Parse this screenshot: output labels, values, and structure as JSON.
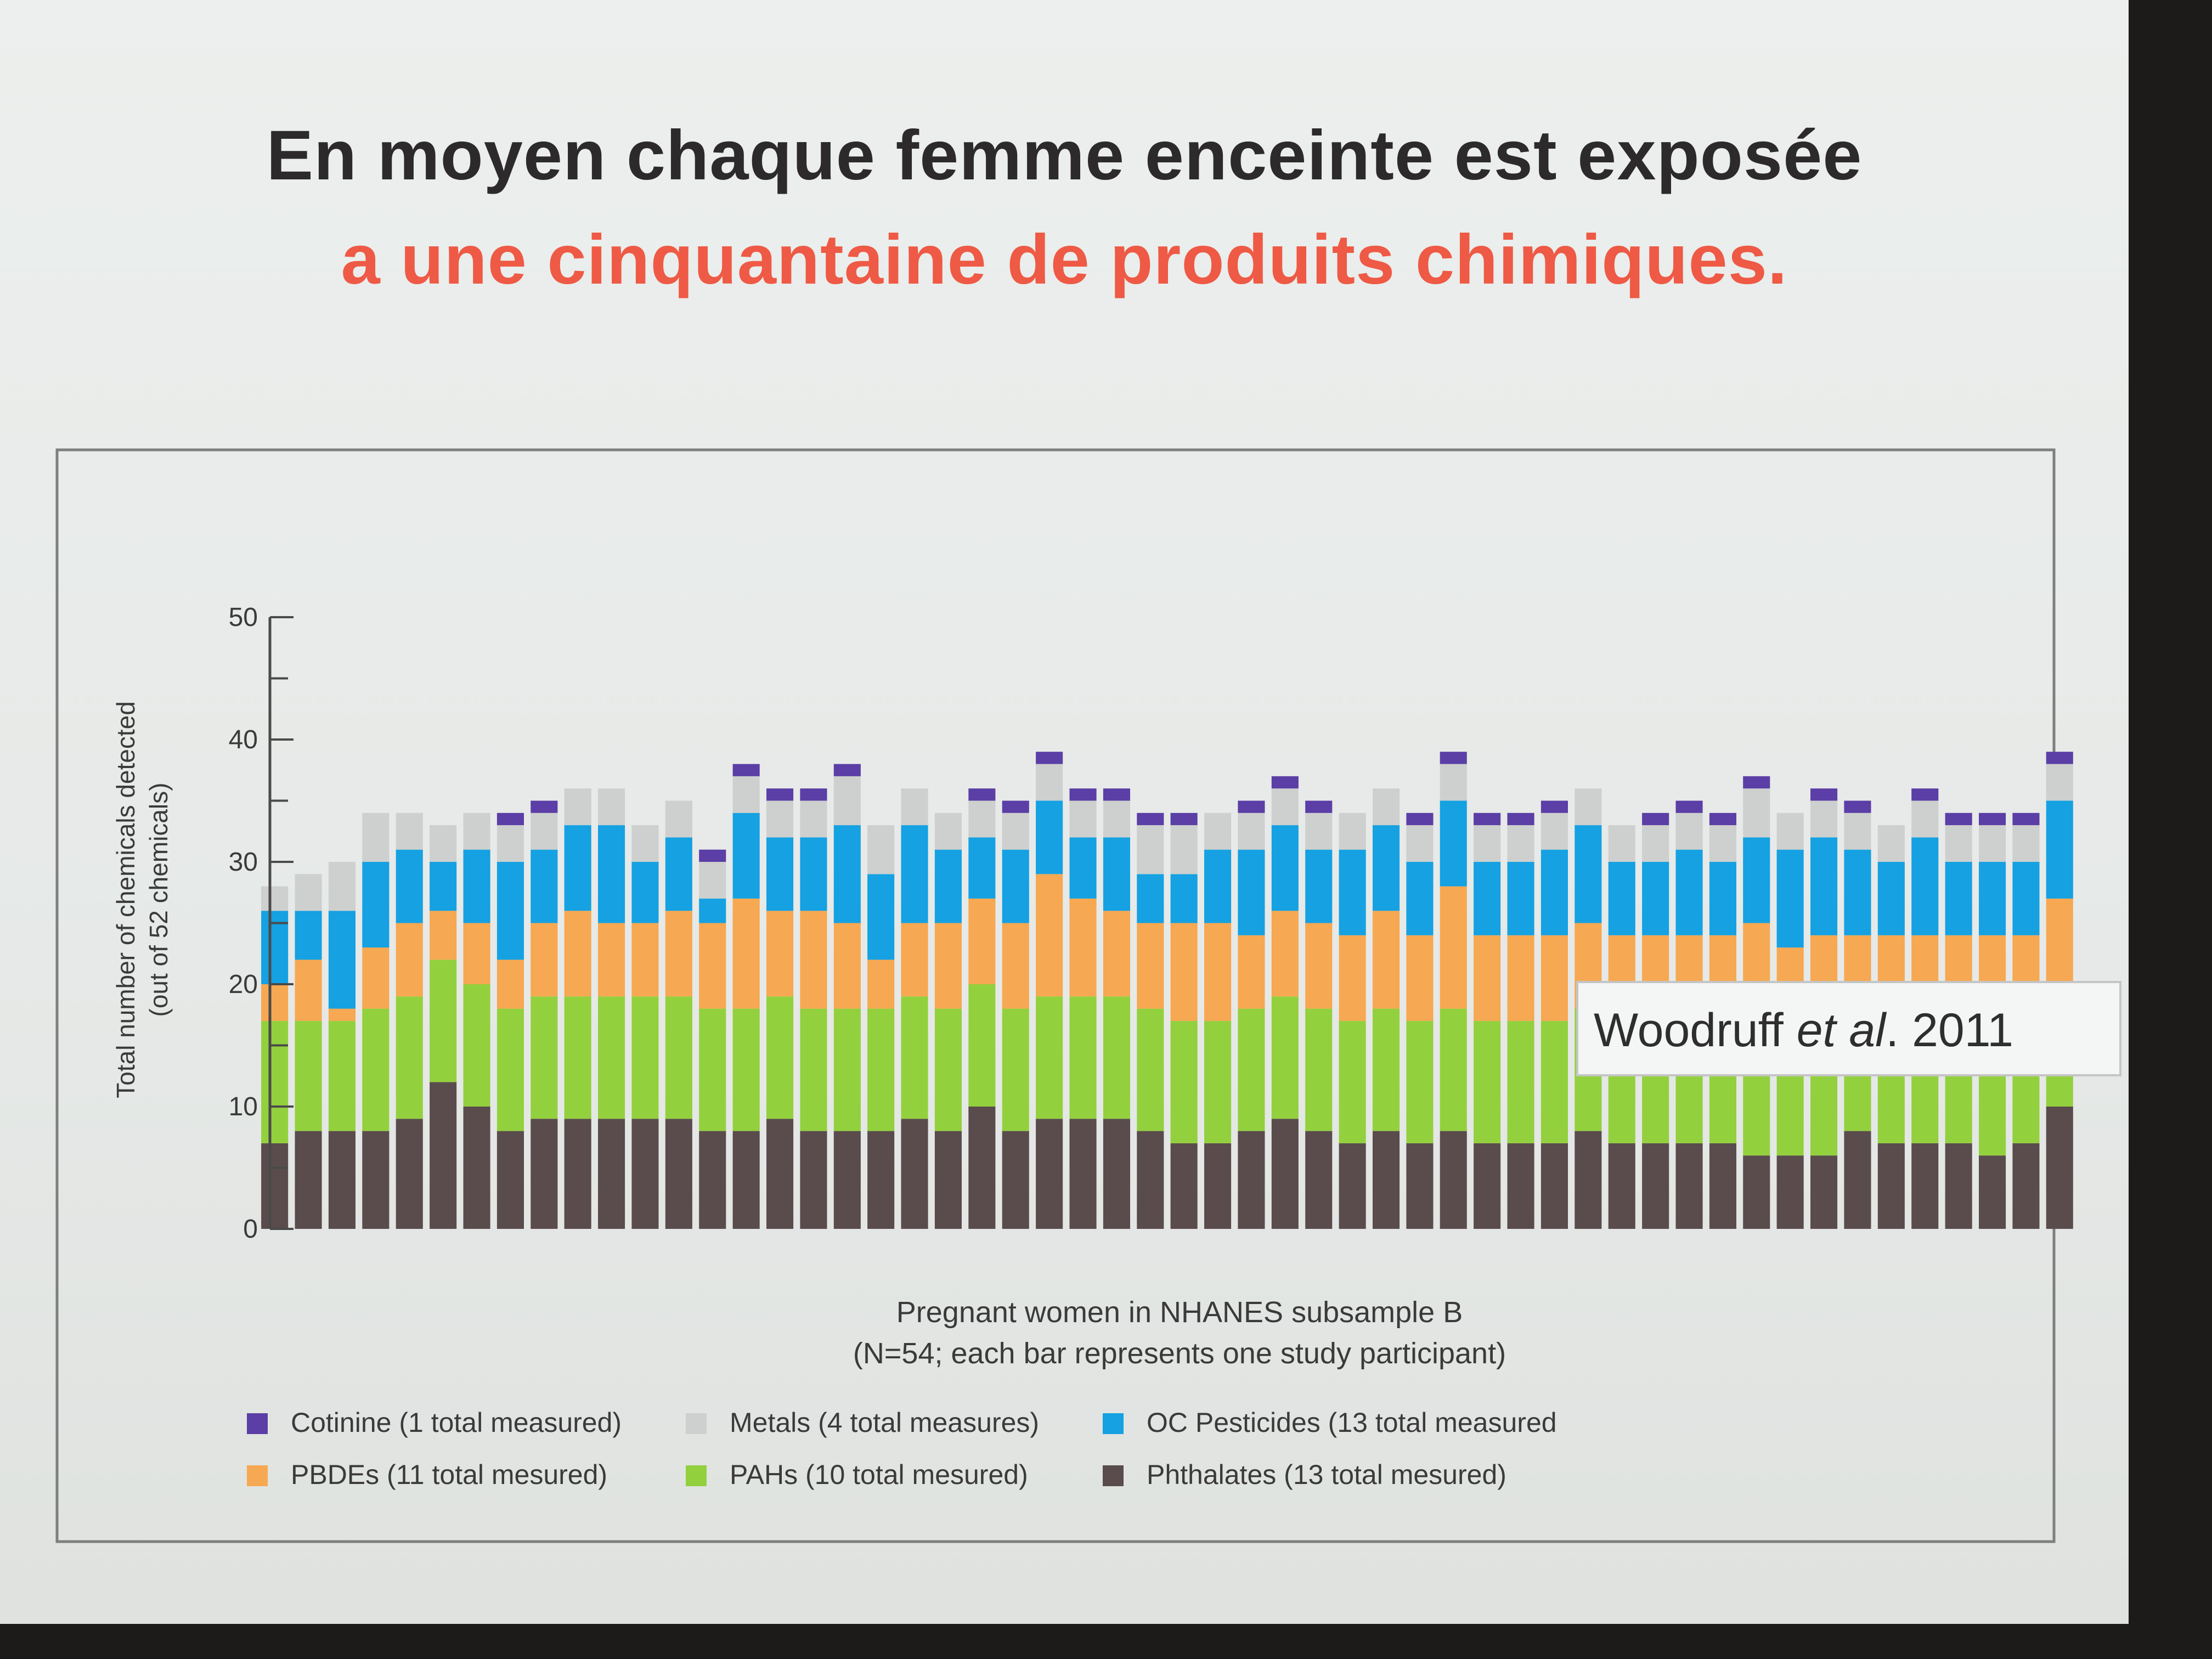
{
  "slide": {
    "title_line1": "En moyen chaque femme enceinte est exposée",
    "title_line2": "a une cinquantaine de produits chimiques."
  },
  "citation": {
    "author": "Woodruff",
    "etal": "et al",
    "rest": ". 2011"
  },
  "colors": {
    "Cotinine": "#5b3ea6",
    "Metals": "#cdd0ce",
    "OC Pesticides": "#15a1e2",
    "PBDEs": "#f6a852",
    "PAHs": "#93d03e",
    "Phthalates": "#5a4c4c",
    "title_accent": "#ee5a45"
  },
  "chart_data": {
    "type": "bar",
    "stacked": true,
    "ylabel": "Total number of chemicals detected",
    "ylabel2": "(out of 52 chemicals)",
    "xlabel": "Pregnant women in NHANES subsample B",
    "xlabel2": "(N=54; each bar represents one study participant)",
    "ylim": [
      0,
      50
    ],
    "yticks": [
      0,
      10,
      20,
      30,
      40,
      50
    ],
    "legend_position": "bottom",
    "series": [
      {
        "name": "Phthalates",
        "legend": "Phthalates (13 total mesured)",
        "values": [
          7,
          8,
          8,
          8,
          9,
          12,
          10,
          8,
          9,
          9,
          9,
          9,
          9,
          8,
          8,
          9,
          8,
          8,
          8,
          9,
          8,
          10,
          8,
          9,
          9,
          9,
          8,
          7,
          7,
          8,
          9,
          8,
          7,
          8,
          7,
          8,
          7,
          7,
          7,
          8,
          7,
          7,
          7,
          7,
          6,
          6,
          6,
          8,
          7,
          7,
          7,
          6,
          7,
          10
        ]
      },
      {
        "name": "PAHs",
        "legend": "PAHs (10 total mesured)",
        "values": [
          10,
          9,
          9,
          10,
          10,
          10,
          10,
          10,
          10,
          10,
          10,
          10,
          10,
          10,
          10,
          10,
          10,
          10,
          10,
          10,
          10,
          10,
          10,
          10,
          10,
          10,
          10,
          10,
          10,
          10,
          10,
          10,
          10,
          10,
          10,
          10,
          10,
          10,
          10,
          10,
          10,
          10,
          10,
          10,
          10,
          10,
          10,
          9,
          10,
          10,
          10,
          10,
          10,
          10
        ]
      },
      {
        "name": "PBDEs",
        "legend": "PBDEs (11 total mesured)",
        "values": [
          3,
          5,
          1,
          5,
          6,
          4,
          5,
          4,
          6,
          7,
          6,
          6,
          7,
          7,
          9,
          7,
          8,
          7,
          4,
          6,
          7,
          7,
          7,
          10,
          8,
          7,
          7,
          8,
          8,
          6,
          7,
          7,
          7,
          8,
          7,
          10,
          7,
          7,
          7,
          7,
          7,
          7,
          7,
          7,
          9,
          7,
          8,
          7,
          7,
          7,
          7,
          8,
          7,
          7
        ]
      },
      {
        "name": "OC Pesticides",
        "legend": "OC Pesticides (13 total measured",
        "values": [
          6,
          4,
          8,
          7,
          6,
          4,
          6,
          8,
          6,
          7,
          8,
          5,
          6,
          2,
          7,
          6,
          6,
          8,
          7,
          8,
          6,
          5,
          6,
          6,
          5,
          6,
          4,
          4,
          6,
          7,
          7,
          6,
          7,
          7,
          6,
          7,
          6,
          6,
          7,
          8,
          6,
          6,
          7,
          6,
          7,
          8,
          8,
          7,
          6,
          8,
          6,
          6,
          6,
          8
        ]
      },
      {
        "name": "Metals",
        "legend": "Metals (4 total measures)",
        "values": [
          2,
          3,
          4,
          4,
          3,
          3,
          3,
          3,
          3,
          3,
          3,
          3,
          3,
          3,
          3,
          3,
          3,
          4,
          4,
          3,
          3,
          3,
          3,
          3,
          3,
          3,
          4,
          4,
          3,
          3,
          3,
          3,
          3,
          3,
          3,
          3,
          3,
          3,
          3,
          3,
          3,
          3,
          3,
          3,
          4,
          3,
          3,
          3,
          3,
          3,
          3,
          3,
          3,
          3
        ]
      },
      {
        "name": "Cotinine",
        "legend": "Cotinine (1 total measured)",
        "values": [
          0,
          0,
          0,
          0,
          0,
          0,
          0,
          1,
          1,
          0,
          0,
          0,
          0,
          1,
          1,
          1,
          1,
          1,
          0,
          0,
          0,
          1,
          1,
          1,
          1,
          1,
          1,
          1,
          0,
          1,
          1,
          1,
          0,
          0,
          1,
          1,
          1,
          1,
          1,
          0,
          0,
          1,
          1,
          1,
          1,
          0,
          1,
          1,
          0,
          1,
          1,
          1,
          1,
          1
        ]
      }
    ]
  }
}
